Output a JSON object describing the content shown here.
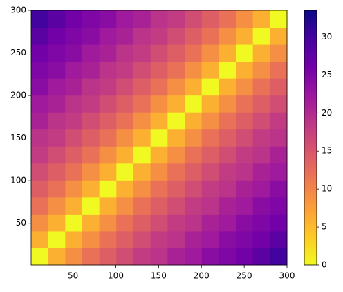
{
  "chart_data": {
    "type": "heatmap",
    "xlim": [
      1,
      300
    ],
    "ylim": [
      1,
      300
    ],
    "xticks": [
      50,
      100,
      150,
      200,
      250,
      300
    ],
    "yticks": [
      50,
      100,
      150,
      200,
      250,
      300
    ],
    "z": [
      [
        0,
        6,
        9,
        12,
        14,
        16,
        18,
        19,
        21,
        22,
        24,
        25,
        26,
        28,
        30
      ],
      [
        6,
        0,
        6,
        9,
        12,
        14,
        16,
        18,
        19,
        21,
        22,
        24,
        25,
        26,
        28
      ],
      [
        9,
        6,
        0,
        6,
        9,
        12,
        14,
        16,
        18,
        19,
        21,
        22,
        24,
        25,
        26
      ],
      [
        12,
        9,
        6,
        0,
        6,
        9,
        12,
        14,
        16,
        18,
        19,
        21,
        22,
        24,
        25
      ],
      [
        14,
        12,
        9,
        6,
        0,
        6,
        9,
        12,
        14,
        16,
        18,
        19,
        21,
        22,
        24
      ],
      [
        16,
        14,
        12,
        9,
        6,
        0,
        6,
        9,
        12,
        14,
        16,
        18,
        19,
        21,
        22
      ],
      [
        18,
        16,
        14,
        12,
        9,
        6,
        0,
        6,
        9,
        12,
        14,
        16,
        18,
        19,
        21
      ],
      [
        19,
        18,
        16,
        14,
        12,
        9,
        6,
        0,
        6,
        9,
        12,
        14,
        16,
        18,
        19
      ],
      [
        21,
        19,
        18,
        16,
        14,
        12,
        9,
        6,
        0,
        6,
        9,
        12,
        14,
        16,
        18
      ],
      [
        22,
        21,
        19,
        18,
        16,
        14,
        12,
        9,
        6,
        0,
        6,
        9,
        12,
        14,
        16
      ],
      [
        24,
        22,
        21,
        19,
        18,
        16,
        14,
        12,
        9,
        6,
        0,
        6,
        9,
        12,
        14
      ],
      [
        25,
        24,
        22,
        21,
        19,
        18,
        16,
        14,
        12,
        9,
        6,
        0,
        6,
        9,
        12
      ],
      [
        26,
        25,
        24,
        22,
        21,
        19,
        18,
        16,
        14,
        12,
        9,
        6,
        0,
        6,
        9
      ],
      [
        28,
        26,
        25,
        24,
        22,
        21,
        19,
        18,
        16,
        14,
        12,
        9,
        6,
        0,
        6
      ],
      [
        30,
        28,
        26,
        25,
        24,
        22,
        21,
        19,
        18,
        16,
        14,
        12,
        9,
        6,
        0
      ]
    ],
    "colormap": [
      "#f0f921",
      "#fdca26",
      "#fb9f3a",
      "#ed7953",
      "#d8576b",
      "#bd3786",
      "#9c179e",
      "#7201a8",
      "#46039f",
      "#0d0887"
    ],
    "clim": [
      0,
      33.5
    ],
    "cbticks": [
      0,
      5,
      10,
      15,
      20,
      25,
      30
    ]
  }
}
